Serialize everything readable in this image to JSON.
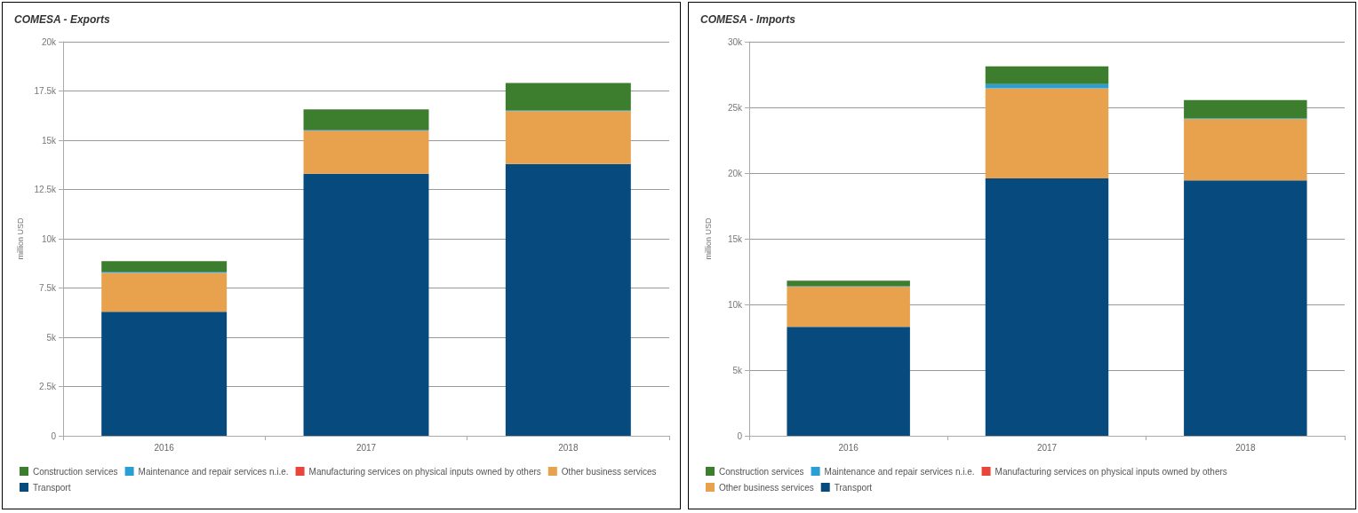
{
  "chart_data": [
    {
      "type": "bar",
      "title": "COMESA - Exports",
      "ylabel": "million USD",
      "categories": [
        "2016",
        "2017",
        "2018"
      ],
      "stacked": true,
      "legend": "bottom left",
      "grid": "y",
      "ylim": [
        0,
        20000
      ],
      "yticks": [
        {
          "value": 0,
          "label": "0"
        },
        {
          "value": 2500,
          "label": "2.5k"
        },
        {
          "value": 5000,
          "label": "5k"
        },
        {
          "value": 7500,
          "label": "7.5k"
        },
        {
          "value": 10000,
          "label": "10k"
        },
        {
          "value": 12500,
          "label": "12.5k"
        },
        {
          "value": 15000,
          "label": "15k"
        },
        {
          "value": 17500,
          "label": "17.5k"
        },
        {
          "value": 20000,
          "label": "20k"
        }
      ],
      "series": [
        {
          "name": "Transport",
          "color": "#064a7e",
          "values": [
            6300,
            13300,
            13800
          ]
        },
        {
          "name": "Other business services",
          "color": "#e8a14c",
          "values": [
            1980,
            2200,
            2680
          ]
        },
        {
          "name": "Manufacturing services on physical inputs owned by others",
          "color": "#e8463a",
          "values": [
            0,
            0,
            0
          ]
        },
        {
          "name": "Maintenance and repair services n.i.e.",
          "color": "#2a9fd6",
          "values": [
            50,
            40,
            30
          ]
        },
        {
          "name": "Construction services",
          "color": "#3c7d2e",
          "values": [
            530,
            1030,
            1390
          ]
        }
      ]
    },
    {
      "type": "bar",
      "title": "COMESA - Imports",
      "ylabel": "million USD",
      "categories": [
        "2016",
        "2017",
        "2018"
      ],
      "stacked": true,
      "legend": "bottom left",
      "grid": "y",
      "ylim": [
        0,
        30000
      ],
      "yticks": [
        {
          "value": 0,
          "label": "0"
        },
        {
          "value": 5000,
          "label": "5k"
        },
        {
          "value": 10000,
          "label": "10k"
        },
        {
          "value": 15000,
          "label": "15k"
        },
        {
          "value": 20000,
          "label": "20k"
        },
        {
          "value": 25000,
          "label": "25k"
        },
        {
          "value": 30000,
          "label": "30k"
        }
      ],
      "series": [
        {
          "name": "Transport",
          "color": "#064a7e",
          "values": [
            8300,
            19600,
            19450
          ]
        },
        {
          "name": "Other business services",
          "color": "#e8a14c",
          "values": [
            3050,
            6850,
            4650
          ]
        },
        {
          "name": "Manufacturing services on physical inputs owned by others",
          "color": "#e8463a",
          "values": [
            0,
            0,
            0
          ]
        },
        {
          "name": "Maintenance and repair services n.i.e.",
          "color": "#2a9fd6",
          "values": [
            60,
            330,
            60
          ]
        },
        {
          "name": "Construction services",
          "color": "#3c7d2e",
          "values": [
            400,
            1340,
            1400
          ]
        }
      ]
    }
  ]
}
